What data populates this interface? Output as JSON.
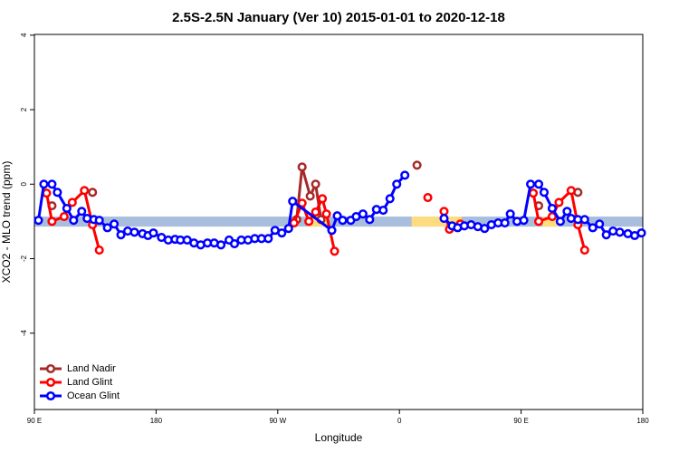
{
  "chart_data": {
    "type": "line",
    "title": "2.5S-2.5N January (Ver 10)   2015-01-01 to 2020-12-18",
    "x_label": "Longitude",
    "y_label": "XCO2 - MLO trend (ppm)",
    "xlim": [
      90,
      540
    ],
    "ylim": [
      -6.05,
      4.02
    ],
    "xticks": [
      {
        "value": 90,
        "label": "90 E"
      },
      180,
      {
        "value": 270,
        "label": "90 W"
      },
      {
        "value": 360,
        "label": "0"
      },
      {
        "value": 450,
        "label": "90 E"
      },
      {
        "value": 540,
        "label": "180"
      }
    ],
    "yticks": [
      -4,
      -2,
      0,
      2,
      4
    ],
    "legend": "bottom-left",
    "reference_band": {
      "y": [
        -1.14,
        -0.87
      ],
      "color": "#a9bedd"
    },
    "land_ranges": {
      "x": [
        [
          292,
          307
        ],
        [
          369,
          406
        ],
        [
          466,
          478
        ]
      ],
      "color": "#fddc80"
    },
    "series": [
      {
        "name": "Land Nadir",
        "color": "#a52a2a",
        "x": [
          103,
          115,
          133,
          200,
          284,
          288,
          294,
          298,
          302,
          340,
          373,
          420,
          463,
          480,
          492
        ],
        "values": [
          -0.58,
          null,
          -0.22,
          null,
          -0.95,
          0.46,
          -0.32,
          0.0,
          -0.95,
          null,
          0.51,
          null,
          -0.58,
          null,
          -0.22
        ]
      },
      {
        "name": "Land Glint",
        "color": "#ff0000",
        "x": [
          99,
          103,
          112,
          118,
          127,
          133,
          138,
          200,
          282,
          288,
          293,
          298,
          303,
          306,
          312,
          350,
          381,
          387,
          393,
          397,
          405,
          430,
          459,
          463,
          473,
          478,
          487,
          492,
          497
        ],
        "values": [
          -0.24,
          -1.0,
          -0.87,
          -0.49,
          -0.17,
          -1.09,
          -1.77,
          null,
          -1.04,
          -0.51,
          -1.0,
          -0.75,
          -0.39,
          -0.8,
          -1.8,
          null,
          -0.36,
          null,
          -0.73,
          -1.21,
          -1.07,
          null,
          -0.24,
          -1.0,
          -0.87,
          -0.49,
          -0.17,
          -1.09,
          -1.77
        ]
      },
      {
        "name": "Ocean Glint",
        "color": "#0000ff",
        "x": [
          93,
          97,
          103,
          107,
          114,
          119,
          125,
          129,
          134,
          138,
          144,
          149,
          154,
          159,
          164,
          170,
          174,
          178,
          184,
          189,
          194,
          198,
          203,
          208,
          213,
          218,
          223,
          228,
          234,
          238,
          243,
          248,
          253,
          258,
          263,
          268,
          273,
          278,
          281,
          310,
          314,
          318,
          324,
          328,
          333,
          338,
          343,
          348,
          353,
          358,
          364,
          378,
          393,
          399,
          403,
          408,
          413,
          418,
          423,
          428,
          433,
          438,
          442,
          447,
          452,
          457,
          463,
          467,
          473,
          479,
          484,
          487,
          492,
          497,
          503,
          508,
          513,
          518,
          523,
          529,
          534,
          539
        ],
        "values": [
          -0.97,
          0.0,
          0.0,
          -0.22,
          -0.65,
          -0.97,
          -0.73,
          -0.92,
          -0.95,
          -0.97,
          -1.17,
          -1.07,
          -1.36,
          -1.26,
          -1.29,
          -1.33,
          -1.38,
          -1.31,
          -1.43,
          -1.5,
          -1.48,
          -1.5,
          -1.5,
          -1.58,
          -1.63,
          -1.58,
          -1.58,
          -1.63,
          -1.5,
          -1.6,
          -1.5,
          -1.5,
          -1.46,
          -1.46,
          -1.46,
          -1.24,
          -1.31,
          -1.19,
          -0.46,
          -1.24,
          -0.85,
          -0.97,
          -0.97,
          -0.87,
          -0.8,
          -0.95,
          -0.68,
          -0.7,
          -0.39,
          0.0,
          0.24,
          null,
          -0.92,
          -1.12,
          -1.17,
          -1.12,
          -1.09,
          -1.14,
          -1.19,
          -1.09,
          -1.04,
          -1.04,
          -0.8,
          -1.0,
          -0.97,
          0.0,
          0.0,
          -0.22,
          -0.65,
          -1.0,
          -0.73,
          -0.92,
          -0.95,
          -0.95,
          -1.17,
          -1.07,
          -1.36,
          -1.26,
          -1.29,
          -1.33,
          -1.38,
          -1.31
        ]
      }
    ]
  }
}
